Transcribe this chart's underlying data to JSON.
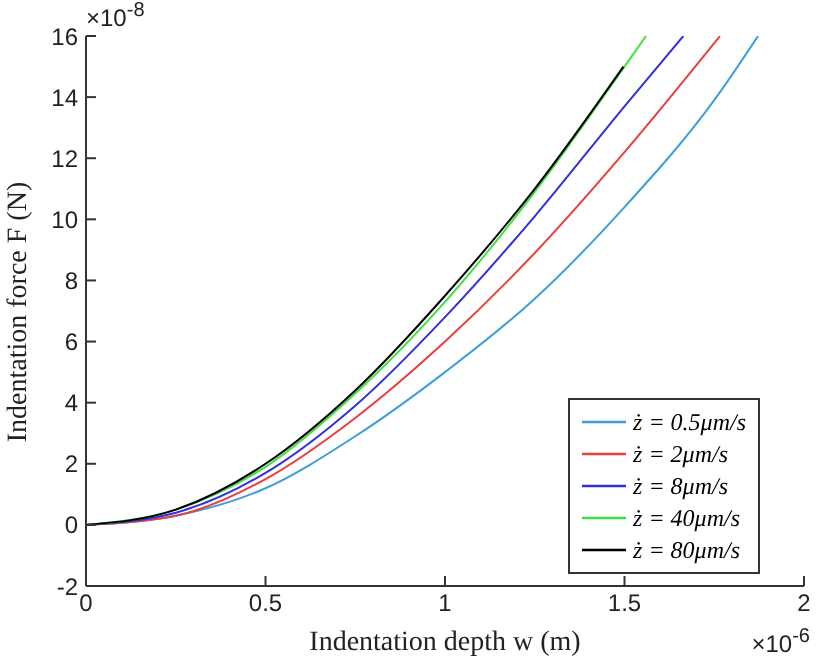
{
  "chart_data": {
    "type": "line",
    "xlabel": "Indentation depth w (m)",
    "ylabel": "Indentation force F (N)",
    "xlim": [
      0,
      2
    ],
    "xticks": [
      0,
      0.5,
      1,
      1.5,
      2
    ],
    "ylim": [
      -2,
      16
    ],
    "yticks": [
      -2,
      0,
      2,
      4,
      6,
      8,
      10,
      12,
      14,
      16
    ],
    "annotations": [
      "×10$^{-8}$",
      "×10$^{-6}$"
    ],
    "legend": "bottom right",
    "marker": "none",
    "line_style": "solid",
    "series": [
      {
        "name": "ż = 0.5μm/s",
        "color": "#3e9fd8",
        "x": [
          0,
          0.25,
          0.5,
          0.75,
          1,
          1.25,
          1.5,
          1.75,
          1.872
        ],
        "values": [
          0,
          0.3,
          1.2,
          2.9,
          5.0,
          7.4,
          10.4,
          13.9,
          16
        ]
      },
      {
        "name": "ż = 2μm/s",
        "color": "#e8403f",
        "x": [
          0,
          0.25,
          0.5,
          0.75,
          1,
          1.25,
          1.5,
          1.766
        ],
        "values": [
          0,
          0.3,
          1.5,
          3.5,
          6.0,
          8.9,
          12.2,
          16
        ]
      },
      {
        "name": "ż = 8μm/s",
        "color": "#3030e0",
        "x": [
          0,
          0.25,
          0.5,
          0.75,
          1,
          1.25,
          1.5,
          1.664
        ],
        "values": [
          0,
          0.4,
          1.7,
          3.9,
          6.8,
          10.1,
          13.7,
          16
        ]
      },
      {
        "name": "ż = 40μm/s",
        "color": "#40e040",
        "x": [
          0,
          0.25,
          0.5,
          0.75,
          1,
          1.25,
          1.5,
          1.56
        ],
        "values": [
          0,
          0.5,
          1.9,
          4.3,
          7.3,
          10.9,
          15.0,
          16
        ]
      },
      {
        "name": "ż = 80μm/s",
        "color": "#000000",
        "x": [
          0,
          0.25,
          0.5,
          0.75,
          1,
          1.25,
          1.497
        ],
        "values": [
          0,
          0.5,
          2.0,
          4.4,
          7.5,
          11.0,
          15
        ]
      }
    ]
  }
}
